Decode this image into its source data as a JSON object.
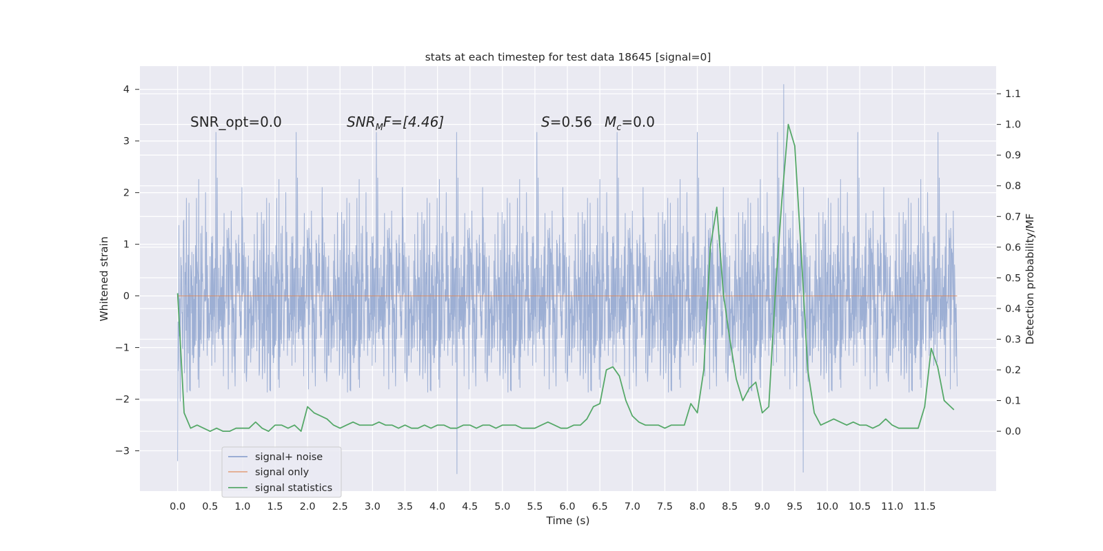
{
  "chart_data": {
    "type": "line",
    "title": "stats at each timestep for test data 18645 [signal=0]",
    "xlabel": "Time (s)",
    "ylabel_left": "Whitened strain",
    "ylabel_right": "Detection probability/MF",
    "xlim": [
      -0.58,
      12.6
    ],
    "ylim_left": [
      -3.78,
      4.45
    ],
    "ylim_right": [
      -0.195,
      1.19
    ],
    "x_ticks": [
      "0.0",
      "0.5",
      "1.0",
      "1.5",
      "2.0",
      "2.5",
      "3.0",
      "3.5",
      "4.0",
      "4.5",
      "5.0",
      "5.5",
      "6.0",
      "6.5",
      "7.0",
      "7.5",
      "8.0",
      "8.5",
      "9.0",
      "9.5",
      "10.0",
      "10.5",
      "11.0",
      "11.5"
    ],
    "y_ticks_left": [
      "4",
      "3",
      "2",
      "1",
      "0",
      "−1",
      "−2",
      "−3"
    ],
    "y_ticks_right": [
      "1.1",
      "1.0",
      "0.9",
      "0.8",
      "0.7",
      "0.6",
      "0.5",
      "0.4",
      "0.3",
      "0.2",
      "0.1",
      "0.0"
    ],
    "grid": true,
    "legend_position": "bottom-left",
    "annotations": [
      {
        "id": "snr_opt",
        "text": "SNR_opt=0.0"
      },
      {
        "id": "snr_mf_label",
        "text": "SNR"
      },
      {
        "id": "snr_mf_sub",
        "text": "M"
      },
      {
        "id": "snr_mf_rest",
        "text": "F=[4.46]"
      },
      {
        "id": "s_label",
        "text": "S"
      },
      {
        "id": "s_value",
        "text": "=0.56"
      },
      {
        "id": "mc_label",
        "text": "M"
      },
      {
        "id": "mc_sub",
        "text": "c"
      },
      {
        "id": "mc_value",
        "text": "=0.0"
      }
    ],
    "series": [
      {
        "name": "signal+ noise",
        "axis": "left",
        "color": "#8fa4cf",
        "description_of_values": "whitened strain noise, approximately Gaussian with unit variance, spanning about -3.5 to 4.1",
        "x_range": [
          0.0,
          12.0
        ],
        "notable_peaks": [
          {
            "x": 9.33,
            "y": 4.1
          },
          {
            "x": 9.63,
            "y": -3.42
          },
          {
            "x": 4.3,
            "y": -3.45
          },
          {
            "x": 0.0,
            "y": -3.2
          }
        ]
      },
      {
        "name": "signal only",
        "axis": "left",
        "color": "#dd8452",
        "x": [
          0.0,
          12.0
        ],
        "y": [
          0.0,
          0.0
        ]
      },
      {
        "name": "signal statistics",
        "axis": "right",
        "color": "#55a868",
        "x": [
          0.0,
          0.1,
          0.2,
          0.3,
          0.4,
          0.5,
          0.6,
          0.7,
          0.8,
          0.9,
          1.0,
          1.1,
          1.2,
          1.3,
          1.4,
          1.5,
          1.6,
          1.7,
          1.8,
          1.9,
          2.0,
          2.1,
          2.2,
          2.3,
          2.4,
          2.5,
          2.6,
          2.7,
          2.8,
          2.9,
          3.0,
          3.1,
          3.2,
          3.3,
          3.4,
          3.5,
          3.6,
          3.7,
          3.8,
          3.9,
          4.0,
          4.1,
          4.2,
          4.3,
          4.4,
          4.5,
          4.6,
          4.7,
          4.8,
          4.9,
          5.0,
          5.1,
          5.2,
          5.3,
          5.4,
          5.5,
          5.6,
          5.7,
          5.8,
          5.9,
          6.0,
          6.1,
          6.2,
          6.3,
          6.4,
          6.5,
          6.6,
          6.7,
          6.8,
          6.9,
          7.0,
          7.1,
          7.2,
          7.3,
          7.4,
          7.5,
          7.6,
          7.7,
          7.8,
          7.9,
          8.0,
          8.1,
          8.2,
          8.3,
          8.4,
          8.5,
          8.6,
          8.7,
          8.8,
          8.9,
          9.0,
          9.1,
          9.2,
          9.3,
          9.4,
          9.5,
          9.6,
          9.7,
          9.8,
          9.9,
          10.0,
          10.1,
          10.2,
          10.3,
          10.4,
          10.5,
          10.6,
          10.7,
          10.8,
          10.9,
          11.0,
          11.1,
          11.2,
          11.3,
          11.4,
          11.5,
          11.6,
          11.7,
          11.8,
          11.9,
          11.95
        ],
        "y": [
          0.45,
          0.06,
          0.01,
          0.02,
          0.01,
          0.0,
          0.01,
          0.0,
          0.0,
          0.01,
          0.01,
          0.01,
          0.03,
          0.01,
          0.0,
          0.02,
          0.02,
          0.01,
          0.02,
          0.0,
          0.08,
          0.06,
          0.05,
          0.04,
          0.02,
          0.01,
          0.02,
          0.03,
          0.02,
          0.02,
          0.02,
          0.03,
          0.02,
          0.02,
          0.01,
          0.02,
          0.01,
          0.01,
          0.02,
          0.01,
          0.02,
          0.02,
          0.01,
          0.01,
          0.02,
          0.02,
          0.01,
          0.02,
          0.02,
          0.01,
          0.02,
          0.02,
          0.02,
          0.01,
          0.01,
          0.01,
          0.02,
          0.03,
          0.02,
          0.01,
          0.01,
          0.02,
          0.02,
          0.04,
          0.08,
          0.09,
          0.2,
          0.21,
          0.18,
          0.1,
          0.05,
          0.03,
          0.02,
          0.02,
          0.02,
          0.01,
          0.02,
          0.02,
          0.02,
          0.09,
          0.06,
          0.2,
          0.6,
          0.73,
          0.45,
          0.3,
          0.17,
          0.1,
          0.14,
          0.16,
          0.06,
          0.08,
          0.45,
          0.75,
          1.0,
          0.93,
          0.58,
          0.2,
          0.06,
          0.02,
          0.03,
          0.04,
          0.03,
          0.02,
          0.03,
          0.02,
          0.02,
          0.01,
          0.02,
          0.04,
          0.02,
          0.01,
          0.01,
          0.01,
          0.01,
          0.08,
          0.27,
          0.21,
          0.1,
          0.08,
          0.07
        ]
      }
    ]
  }
}
